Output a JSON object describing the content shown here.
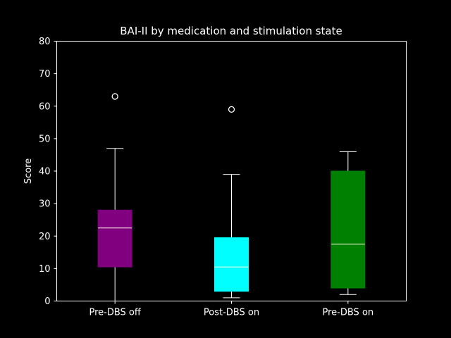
{
  "chart_data": {
    "type": "boxplot",
    "title": "BAI-II by medication and stimulation state",
    "xlabel": "",
    "ylabel": "Score",
    "ylim": [
      0,
      80
    ],
    "yticks": [
      0,
      10,
      20,
      30,
      40,
      50,
      60,
      70,
      80
    ],
    "grid": false,
    "categories": [
      "Pre-DBS off",
      "Post-DBS on",
      "Pre-DBS on"
    ],
    "boxes": [
      {
        "category": "Pre-DBS off",
        "color": "#800080",
        "whisker_low": 0,
        "q1": 10.5,
        "median": 22.5,
        "q3": 28,
        "whisker_high": 47,
        "outliers": [
          63
        ]
      },
      {
        "category": "Post-DBS on",
        "color": "#00ffff",
        "whisker_low": 1,
        "q1": 3,
        "median": 10.5,
        "q3": 19.5,
        "whisker_high": 39,
        "outliers": [
          59
        ]
      },
      {
        "category": "Pre-DBS on",
        "color": "#008000",
        "whisker_low": 2,
        "q1": 4,
        "median": 17.5,
        "q3": 40,
        "whisker_high": 46,
        "outliers": []
      }
    ]
  },
  "colors": {
    "background": "#000000",
    "axis": "#ffffff",
    "median_line": "#ffffe0",
    "whisker": "#ffffff"
  }
}
